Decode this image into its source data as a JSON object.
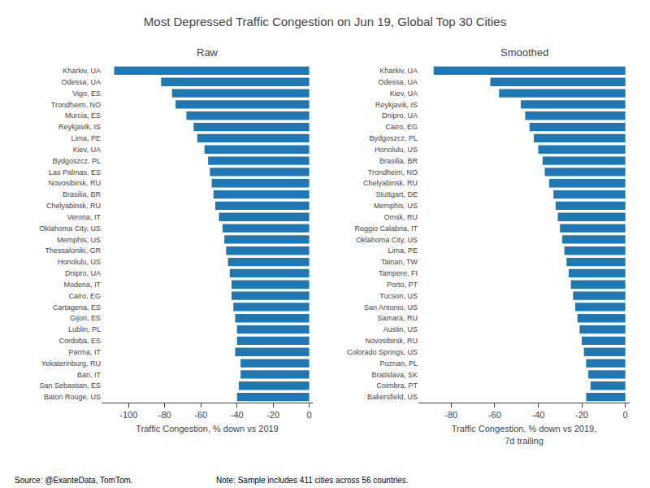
{
  "title": "Most Depressed Traffic Congestion on Jun 19, Global Top 30 Cities",
  "annotations": [
    "Source: @ExanteData, TomTom.",
    "Note: Sample includes 411 cities across 56 countries."
  ],
  "chart_data": [
    {
      "type": "bar",
      "orientation": "horizontal",
      "title": "Raw",
      "categories": [
        "Kharkiv, UA",
        "Odessa, UA",
        "Vigo, ES",
        "Trondheim, NO",
        "Murcia, ES",
        "Reykjavik, IS",
        "Lima, PE",
        "Kiev, UA",
        "Bydgoszcz, PL",
        "Las Palmas, ES",
        "Novosibirsk, RU",
        "Brasilia, BR",
        "Chelyabinsk, RU",
        "Verona, IT",
        "Oklahoma City, US",
        "Memphis, US",
        "Thessaloniki, GR",
        "Honolulu, US",
        "Dnipro, UA",
        "Modena, IT",
        "Cairo, EG",
        "Cartagena, ES",
        "Gijon, ES",
        "Lublin, PL",
        "Cordoba, ES",
        "Parma, IT",
        "Yekaterinburg, RU",
        "Bari, IT",
        "San Sebastian, ES",
        "Baton Rouge, US"
      ],
      "values": [
        -108,
        -82,
        -76,
        -74,
        -68,
        -64,
        -62,
        -58,
        -56,
        -55,
        -54,
        -53,
        -52,
        -50,
        -48,
        -47,
        -46,
        -45,
        -44,
        -43,
        -43,
        -42,
        -41,
        -40,
        -40,
        -41,
        -38,
        -38,
        -39,
        -40
      ],
      "color": "#1f77b4",
      "xlabel": "Traffic Congestion, % down vs 2019",
      "xlim": [
        -115,
        2
      ],
      "xticks": [
        -100,
        -80,
        -60,
        -40,
        -20,
        0
      ],
      "grid": false
    },
    {
      "type": "bar",
      "orientation": "horizontal",
      "title": "Smoothed",
      "categories": [
        "Kharkiv, UA",
        "Odessa, UA",
        "Kiev, UA",
        "Reykjavik, IS",
        "Dnipro, UA",
        "Cairo, EG",
        "Bydgoszcz, PL",
        "Honolulu, US",
        "Brasilia, BR",
        "Trondheim, NO",
        "Chelyabinsk, RU",
        "Stuttgart, DE",
        "Memphis, US",
        "Omsk, RU",
        "Reggio Calabria, IT",
        "Oklahoma City, US",
        "Lima, PE",
        "Tainan, TW",
        "Tampere, FI",
        "Porto, PT",
        "Tucson, US",
        "San Antonio, US",
        "Samara, RU",
        "Austin, US",
        "Novosibirsk, RU",
        "Colorado Springs, US",
        "Poznan, PL",
        "Bratislava, SK",
        "Coimbra, PT",
        "Bakersfield, US"
      ],
      "values": [
        -88,
        -62,
        -58,
        -48,
        -46,
        -44,
        -42,
        -40,
        -38,
        -37,
        -35,
        -33,
        -32,
        -31,
        -30,
        -29,
        -28,
        -27,
        -26,
        -25,
        -24,
        -23,
        -22,
        -21,
        -20,
        -19,
        -18,
        -17,
        -16,
        -18
      ],
      "color": "#1f77b4",
      "xlabel": "Traffic Congestion, % down vs 2019,\n7d trailing",
      "xlim": [
        -95,
        2
      ],
      "xticks": [
        -80,
        -60,
        -40,
        -20,
        0
      ],
      "grid": false
    }
  ]
}
